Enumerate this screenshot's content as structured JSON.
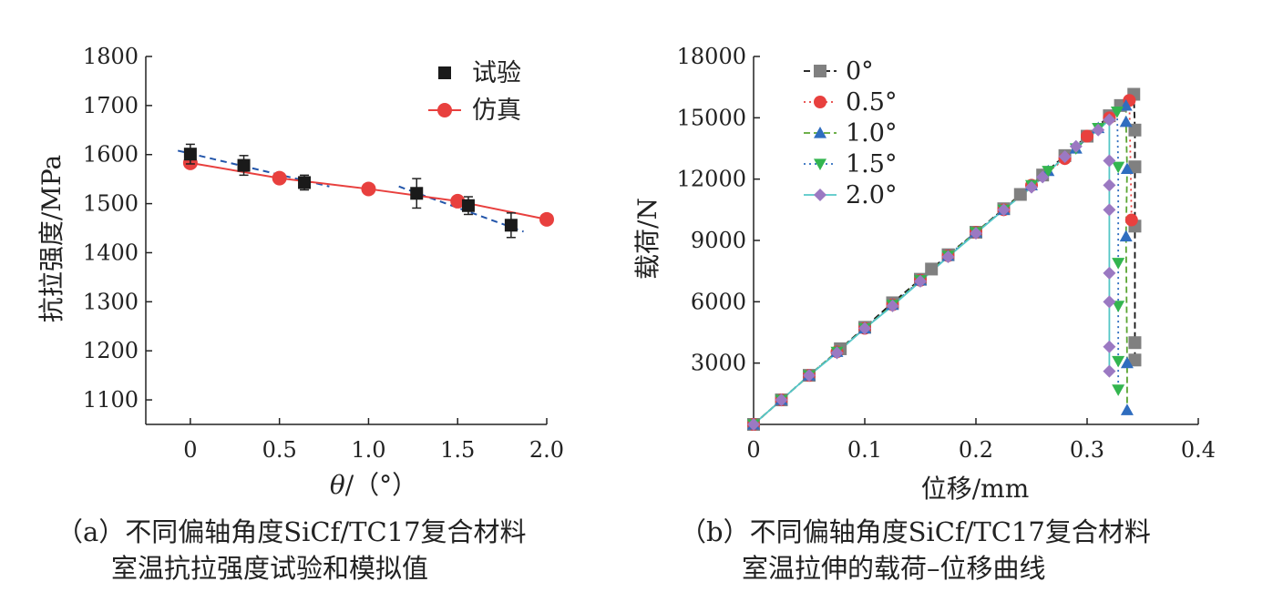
{
  "chart_data": [
    {
      "type": "scatter",
      "xlabel": "θ/（°）",
      "ylabel": "抗拉强度/MPa",
      "xlim": [
        -0.25,
        2.0
      ],
      "ylim": [
        1050,
        1800
      ],
      "xticks": [
        "0",
        "0.5",
        "1.0",
        "1.5",
        "2.0"
      ],
      "yticks": [
        "1100",
        "1200",
        "1300",
        "1400",
        "1500",
        "1600",
        "1700",
        "1800"
      ],
      "legend_position": "top-right",
      "grid": false,
      "series": [
        {
          "name": "试验",
          "marker": "square",
          "color": "#1a1a1a",
          "x": [
            0,
            0.3,
            0.64,
            1.27,
            1.56,
            1.8
          ],
          "y": [
            1601,
            1578,
            1543,
            1521,
            1496,
            1456
          ],
          "err": [
            20,
            20,
            15,
            30,
            18,
            25
          ]
        },
        {
          "name": "仿真",
          "marker": "circle",
          "color": "#e8403e",
          "line": "solid",
          "x": [
            0,
            0.5,
            1.0,
            1.5,
            2.0
          ],
          "y": [
            1583,
            1552,
            1530,
            1505,
            1468
          ]
        }
      ],
      "trend_lines": [
        {
          "color": "#2255aa",
          "style": "dashed",
          "x": [
            -0.07,
            0.78
          ],
          "y": [
            1608,
            1535
          ]
        },
        {
          "color": "#2255aa",
          "style": "dashed",
          "x": [
            1.17,
            1.87
          ],
          "y": [
            1535,
            1443
          ]
        }
      ],
      "caption": [
        "（a）不同偏轴角度SiCf/TC17复合材料",
        "室温抗拉强度试验和模拟值"
      ]
    },
    {
      "type": "line",
      "xlabel": "位移/mm",
      "ylabel": "载荷/N",
      "xlim": [
        0,
        0.4
      ],
      "ylim": [
        0,
        18000
      ],
      "xticks": [
        "0",
        "0.1",
        "0.2",
        "0.3",
        "0.4"
      ],
      "yticks": [
        "3000",
        "6000",
        "9000",
        "12000",
        "15000",
        "18000"
      ],
      "legend_position": "top-left",
      "grid": false,
      "series": [
        {
          "name": "0°",
          "marker": "square",
          "color": "#111111",
          "marker_color": "#808080",
          "line": "dash",
          "x": [
            0,
            0.025,
            0.05,
            0.078,
            0.1,
            0.125,
            0.15,
            0.16,
            0.175,
            0.2,
            0.225,
            0.24,
            0.26,
            0.28,
            0.3,
            0.32,
            0.33,
            0.342,
            0.343,
            0.343,
            0.343,
            0.343,
            0.343
          ],
          "y": [
            0,
            1200,
            2400,
            3700,
            4750,
            5950,
            7100,
            7600,
            8300,
            9400,
            10550,
            11250,
            12200,
            13150,
            14100,
            15100,
            15600,
            16150,
            14400,
            12600,
            9700,
            4000,
            3150
          ]
        },
        {
          "name": "0.5°",
          "marker": "circle",
          "color": "#e8403e",
          "marker_color": "#e8403e",
          "line": "dot",
          "x": [
            0,
            0.025,
            0.05,
            0.075,
            0.1,
            0.125,
            0.15,
            0.175,
            0.2,
            0.225,
            0.25,
            0.28,
            0.3,
            0.32,
            0.338,
            0.34
          ],
          "y": [
            0,
            1200,
            2400,
            3550,
            4700,
            5850,
            7050,
            8250,
            9400,
            10500,
            11700,
            13000,
            14100,
            15000,
            15850,
            10000
          ]
        },
        {
          "name": "1.0°",
          "marker": "triangle-up",
          "color": "#5aa532",
          "marker_color": "#2f6dbf",
          "line": "dash",
          "x": [
            0,
            0.025,
            0.05,
            0.075,
            0.1,
            0.125,
            0.15,
            0.175,
            0.2,
            0.225,
            0.25,
            0.265,
            0.29,
            0.31,
            0.335,
            0.335,
            0.336,
            0.335,
            0.336,
            0.336
          ],
          "y": [
            0,
            1200,
            2400,
            3550,
            4700,
            5850,
            7050,
            8250,
            9400,
            10500,
            11700,
            12400,
            13500,
            14500,
            15600,
            14800,
            12500,
            9200,
            3000,
            700
          ]
        },
        {
          "name": "1.5°",
          "marker": "triangle-down",
          "color": "#2f6dbf",
          "marker_color": "#33b54f",
          "line": "dot",
          "x": [
            0,
            0.025,
            0.05,
            0.075,
            0.1,
            0.125,
            0.15,
            0.175,
            0.2,
            0.225,
            0.25,
            0.265,
            0.29,
            0.31,
            0.327,
            0.328,
            0.328,
            0.328,
            0.328,
            0.328
          ],
          "y": [
            0,
            1200,
            2400,
            3550,
            4700,
            5850,
            7050,
            8250,
            9400,
            10500,
            11700,
            12400,
            13500,
            14500,
            15300,
            12600,
            7900,
            5800,
            3100,
            1700
          ]
        },
        {
          "name": "2.0°",
          "marker": "diamond",
          "color": "#55c7c7",
          "marker_color": "#9b79c2",
          "line": "solid",
          "x": [
            0,
            0.025,
            0.05,
            0.075,
            0.1,
            0.125,
            0.15,
            0.175,
            0.2,
            0.225,
            0.25,
            0.26,
            0.28,
            0.29,
            0.31,
            0.32,
            0.32,
            0.32,
            0.32,
            0.32,
            0.32,
            0.32,
            0.32,
            0.32
          ],
          "y": [
            0,
            1200,
            2400,
            3500,
            4700,
            5800,
            7000,
            8200,
            9350,
            10500,
            11600,
            12100,
            13100,
            13600,
            14400,
            14900,
            12900,
            11700,
            10500,
            7400,
            6000,
            3800,
            2600,
            14900
          ]
        }
      ],
      "caption": [
        "（b）不同偏轴角度SiCf/TC17复合材料",
        "室温拉伸的载荷–位移曲线"
      ]
    }
  ]
}
